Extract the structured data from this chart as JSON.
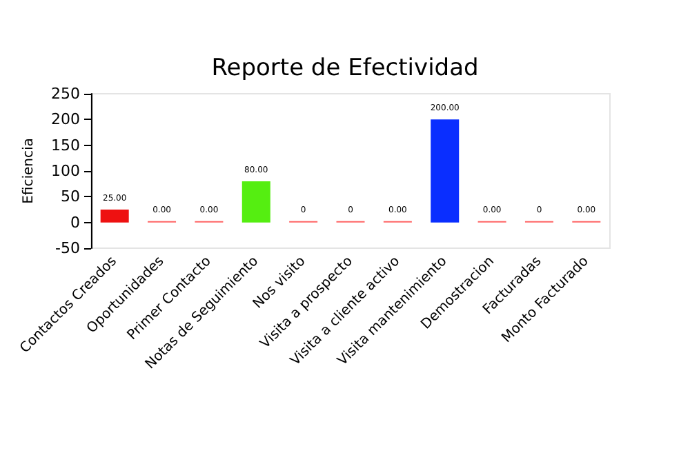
{
  "chart_data": {
    "type": "bar",
    "title": "Reporte de Efectividad",
    "ylabel": "Eficiencia",
    "categories": [
      "Contactos Creados",
      "Oportunidades",
      "Primer Contacto",
      "Notas de Seguimiento",
      "Nos visito",
      "Visita a prospecto",
      "Visita a cliente activo",
      "Visita mantenimiento",
      "Demostracion",
      "Facturadas",
      "Monto Facturado"
    ],
    "values": [
      25,
      0,
      0,
      80,
      0,
      0,
      0,
      200,
      0,
      0,
      0
    ],
    "value_labels": [
      "25.00",
      "0.00",
      "0.00",
      "80.00",
      "0",
      "0",
      "0.00",
      "200.00",
      "0.00",
      "0",
      "0.00"
    ],
    "colors": [
      "#ee1111",
      "#ff6666",
      "#ff6666",
      "#55ee11",
      "#ff6666",
      "#ff6666",
      "#ff6666",
      "#0a2eff",
      "#ff6666",
      "#ff6666",
      "#ff6666"
    ],
    "ylim": [
      -50,
      250
    ],
    "yticks": [
      -50,
      0,
      50,
      100,
      150,
      200,
      250
    ],
    "grid": false
  }
}
